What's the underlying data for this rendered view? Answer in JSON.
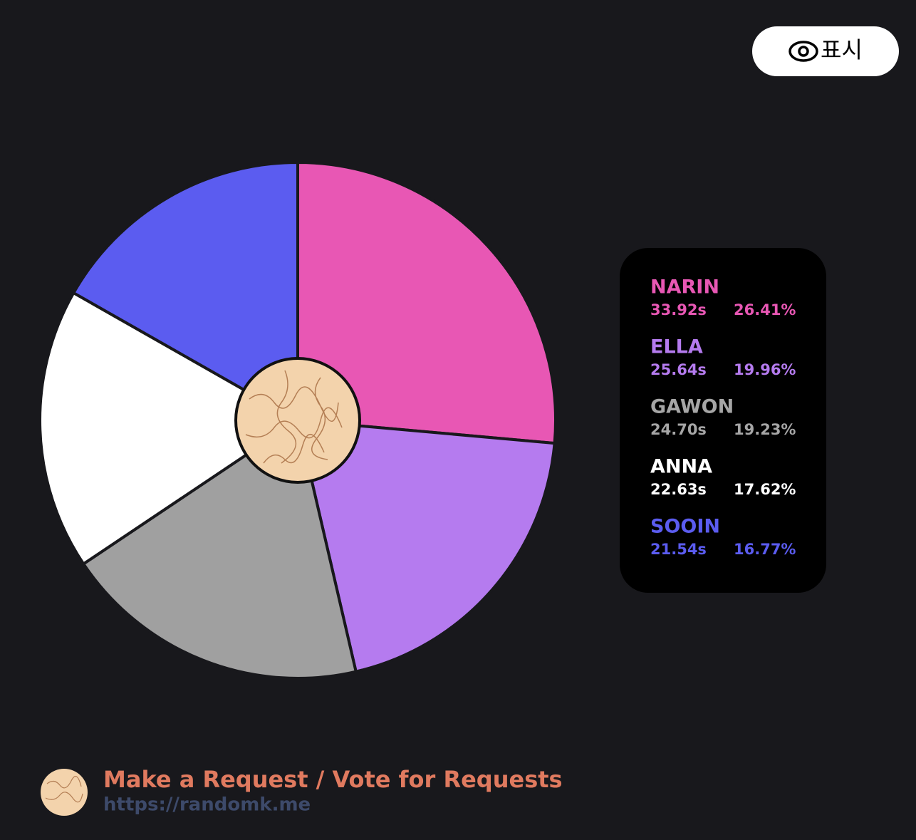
{
  "chart_data": {
    "type": "pie",
    "categories": [
      "NARIN",
      "ELLA",
      "GAWON",
      "ANNA",
      "SOOIN"
    ],
    "values": [
      26.41,
      19.96,
      19.23,
      17.62,
      16.77
    ],
    "value_labels": [
      "26.41%",
      "19.96%",
      "19.23%",
      "17.62%",
      "16.77%"
    ],
    "times": [
      "33.92s",
      "25.64s",
      "24.70s",
      "22.63s",
      "21.54s"
    ],
    "colors": [
      "#e857b4",
      "#b57bef",
      "#a0a0a0",
      "#ffffff",
      "#5b5cf0"
    ],
    "label_colors": [
      "#e857b4",
      "#b57bef",
      "#a6a6a6",
      "#ffffff",
      "#5b5cf0"
    ]
  },
  "button": {
    "label": "표시"
  },
  "footer": {
    "title": "Make a Request / Vote for Requests",
    "url": "https://randomk.me"
  }
}
